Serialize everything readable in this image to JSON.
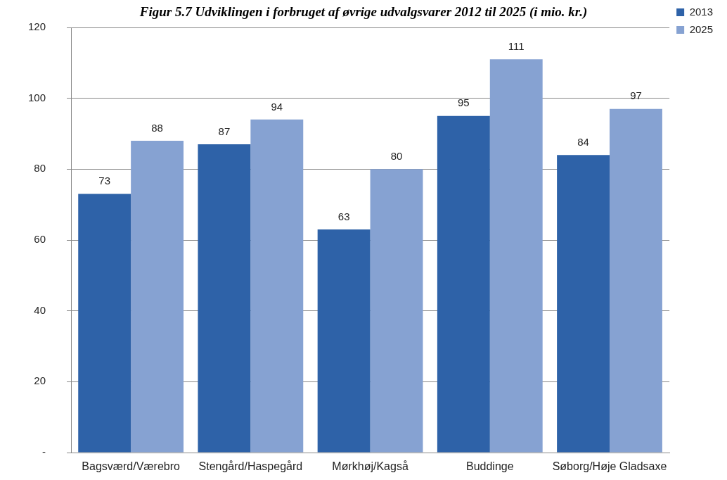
{
  "chart_data": {
    "type": "bar",
    "title": "Figur 5.7 Udviklingen i forbruget af øvrige udvalgsvarer 2012 til 2025 (i mio. kr.)",
    "categories": [
      "Bagsværd/Værebro",
      "Stengård/Haspegård",
      "Mørkhøj/Kagså",
      "Buddinge",
      "Søborg/Høje Gladsaxe"
    ],
    "series": [
      {
        "name": "2013",
        "color": "#2e62a8",
        "values": [
          73,
          87,
          63,
          95,
          84
        ]
      },
      {
        "name": "2025",
        "color": "#86a2d2",
        "values": [
          88,
          94,
          80,
          111,
          97
        ]
      }
    ],
    "ylim": [
      0,
      120
    ],
    "yticks": [
      {
        "value": 0,
        "label": "-"
      },
      20,
      40,
      60,
      80,
      100,
      120
    ],
    "grid": "y",
    "legend": "top right",
    "data_labels": true
  }
}
